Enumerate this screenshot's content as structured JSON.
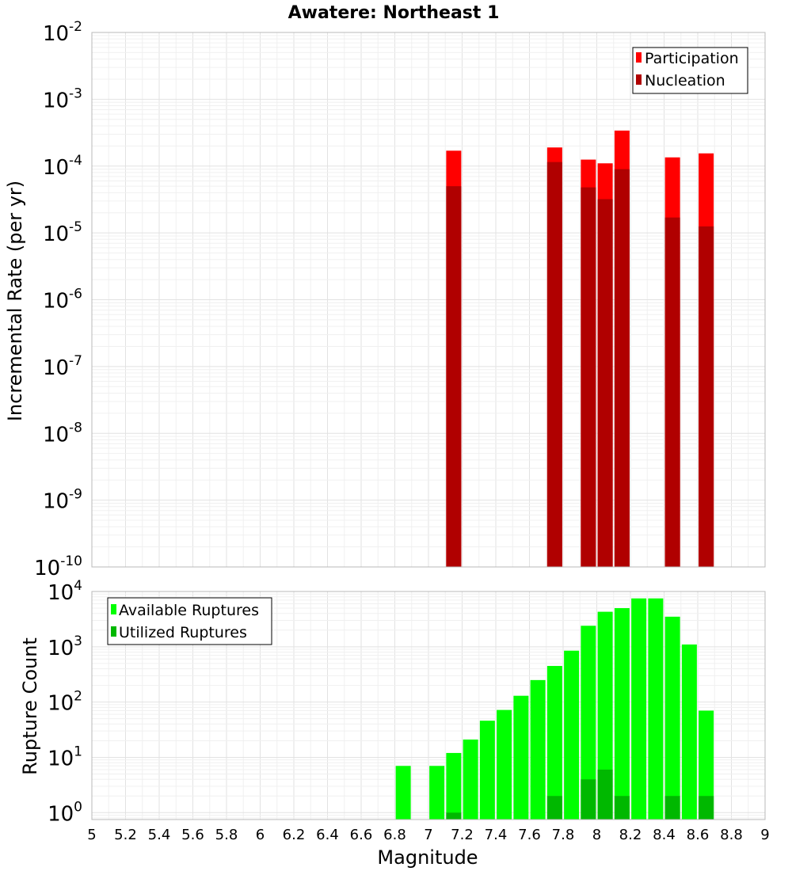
{
  "chart_data": [
    {
      "type": "bar",
      "title": "Awatere: Northeast 1",
      "xlabel": "",
      "ylabel": "Incremental Rate (per yr)",
      "yscale": "log",
      "ylim": [
        1e-10,
        0.01
      ],
      "xlim": [
        5,
        9
      ],
      "grid": true,
      "legend_position": "top-right",
      "y_tick_bases": [
        "10",
        "10",
        "10",
        "10",
        "10",
        "10",
        "10",
        "10",
        "10"
      ],
      "y_tick_exponents": [
        "-2",
        "-3",
        "-4",
        "-5",
        "-6",
        "-7",
        "-8",
        "-9",
        "-10"
      ],
      "series": [
        {
          "name": "Participation",
          "color": "#ff0000",
          "x": [
            7.15,
            7.75,
            7.95,
            8.05,
            8.15,
            8.45,
            8.65
          ],
          "values": [
            0.00017,
            0.00019,
            0.000125,
            0.00011,
            0.00034,
            0.000135,
            0.000155
          ]
        },
        {
          "name": "Nucleation",
          "color": "#b00000",
          "x": [
            7.15,
            7.75,
            7.95,
            8.05,
            8.15,
            8.45,
            8.65
          ],
          "values": [
            5e-05,
            0.000115,
            4.8e-05,
            3.2e-05,
            9e-05,
            1.7e-05,
            1.25e-05
          ]
        }
      ]
    },
    {
      "type": "bar",
      "xlabel": "Magnitude",
      "ylabel": "Rupture Count",
      "yscale": "log",
      "ylim": [
        0.75,
        10000
      ],
      "xlim": [
        5,
        9
      ],
      "grid": true,
      "legend_position": "top-left",
      "y_tick_bases": [
        "10",
        "10",
        "10",
        "10",
        "10"
      ],
      "y_tick_exponents": [
        "4",
        "3",
        "2",
        "1",
        "0"
      ],
      "x_tick_labels": [
        "5",
        "5.2",
        "5.4",
        "5.6",
        "5.8",
        "6",
        "6.2",
        "6.4",
        "6.6",
        "6.8",
        "7",
        "7.2",
        "7.4",
        "7.6",
        "7.8",
        "8",
        "8.2",
        "8.4",
        "8.6",
        "8.8",
        "9"
      ],
      "series": [
        {
          "name": "Available Ruptures",
          "color": "#00ff00",
          "x": [
            6.85,
            7.05,
            7.15,
            7.25,
            7.35,
            7.45,
            7.55,
            7.65,
            7.75,
            7.85,
            7.95,
            8.05,
            8.15,
            8.25,
            8.35,
            8.45,
            8.55,
            8.65
          ],
          "values": [
            7,
            7,
            12,
            21,
            46,
            72,
            130,
            250,
            450,
            850,
            2400,
            4300,
            5000,
            7500,
            7500,
            3500,
            1100,
            70
          ]
        },
        {
          "name": "Utilized Ruptures",
          "color": "#00b800",
          "x": [
            7.15,
            7.75,
            7.95,
            8.05,
            8.15,
            8.45,
            8.65
          ],
          "values": [
            1,
            2,
            4,
            6,
            2,
            2,
            2
          ]
        }
      ]
    }
  ]
}
